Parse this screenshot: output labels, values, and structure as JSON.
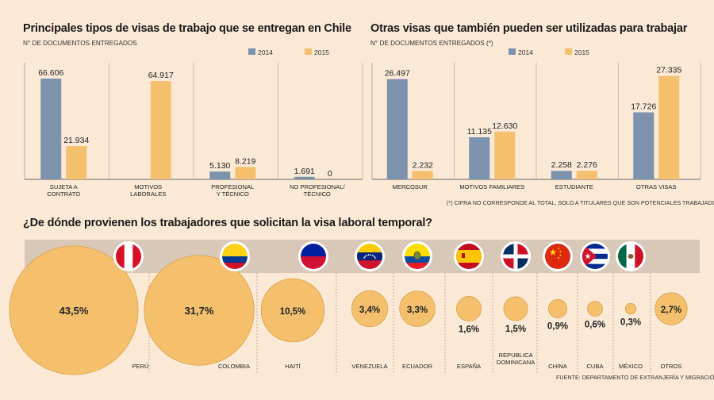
{
  "colors": {
    "background": "#fbe9d6",
    "series_2014": "#7d93ad",
    "series_2015": "#f4c06e",
    "flag_band": "#d9c7b8",
    "bubble": "#f4c06e",
    "bubble_stroke": "#d9a24a"
  },
  "chart_data": [
    {
      "type": "bar",
      "title": "Principales tipos de visas de trabajo que se entregan en Chile",
      "ylabel": "N° DE DOCUMENTOS ENTREGADOS",
      "categories": [
        "SUJETA A|CONTRATO",
        "MOTIVOS|LABORALES",
        "PROFESIONAL|Y TÉCNICO",
        "NO PROFESIONAL/|TÉCNICO"
      ],
      "series": [
        {
          "name": "2014",
          "values": [
            66606,
            0,
            5130,
            1691
          ],
          "labels": [
            "66.606",
            "",
            "5.130",
            "1.691"
          ]
        },
        {
          "name": "2015",
          "values": [
            21934,
            64917,
            8219,
            0
          ],
          "labels": [
            "21.934",
            "64.917",
            "8.219",
            "0"
          ]
        }
      ],
      "ylim": [
        0,
        75000
      ]
    },
    {
      "type": "bar",
      "title": "Otras visas que también pueden ser utilizadas para trabajar",
      "ylabel": "N° DE DOCUMENTOS ENTREGADOS (*)",
      "categories": [
        "MERCOSUR",
        "MOTIVOS FAMILIARES",
        "ESTUDIANTE",
        "OTRAS VISAS"
      ],
      "series": [
        {
          "name": "2014",
          "values": [
            26497,
            11135,
            2258,
            17726
          ],
          "labels": [
            "26.497",
            "11.135",
            "2.258",
            "17.726"
          ]
        },
        {
          "name": "2015",
          "values": [
            2232,
            12630,
            2276,
            27335
          ],
          "labels": [
            "2.232",
            "12.630",
            "2.276",
            "27.335"
          ]
        }
      ],
      "ylim": [
        0,
        30000
      ],
      "footnote": "(*) CIFRA NO CORRESPONDE AL TOTAL, SOLO A TITULARES QUE SON POTENCIALES TRABAJADORES"
    },
    {
      "type": "bubble",
      "title": "¿De dónde provienen los trabajadores que solicitan la visa laboral temporal?",
      "categories": [
        "PERÚ",
        "COLOMBIA",
        "HAITÍ",
        "VENEZUELA",
        "ECUADOR",
        "ESPAÑA",
        "REPUBLICA|DOMINICANA",
        "CHINA",
        "CUBA",
        "MÉXICO",
        "OTROS"
      ],
      "values": [
        43.5,
        31.7,
        10.5,
        3.4,
        3.3,
        1.6,
        1.5,
        0.9,
        0.6,
        0.3,
        2.7
      ],
      "labels": [
        "43,5%",
        "31,7%",
        "10,5%",
        "3,4%",
        "3,3%",
        "1,6%",
        "1,5%",
        "0,9%",
        "0,6%",
        "0,3%",
        "2,7%"
      ],
      "flags": [
        "peru-flag-icon",
        "colombia-flag-icon",
        "haiti-flag-icon",
        "venezuela-flag-icon",
        "ecuador-flag-icon",
        "spain-flag-icon",
        "dominican-republic-flag-icon",
        "china-flag-icon",
        "cuba-flag-icon",
        "mexico-flag-icon",
        ""
      ]
    }
  ],
  "source": "FUENTE: DEPARTAMENTO DE EXTRANJERÍA Y MIGRACIÓN"
}
